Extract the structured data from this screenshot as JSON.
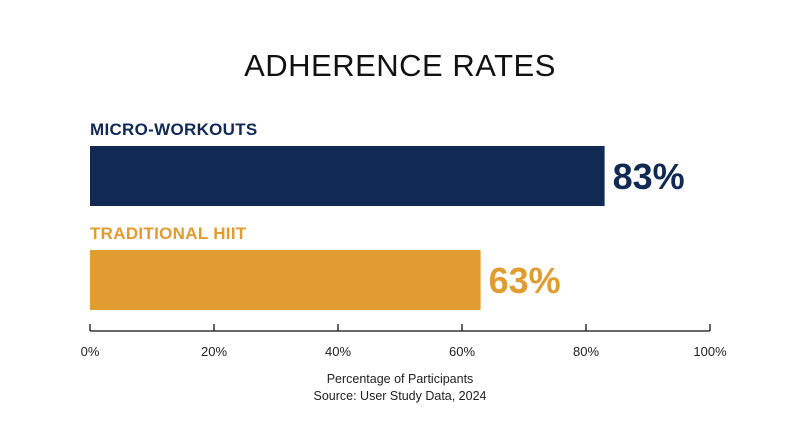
{
  "chart_data": {
    "type": "bar",
    "orientation": "horizontal",
    "title": "ADHERENCE RATES",
    "categories": [
      "MICRO-WORKOUTS",
      "TRADITIONAL HIIT"
    ],
    "values": [
      83,
      63
    ],
    "value_labels": [
      "83%",
      "63%"
    ],
    "colors": [
      "#102a54",
      "#e19c31"
    ],
    "xlim": [
      0,
      100
    ],
    "x_ticks": [
      0,
      20,
      40,
      60,
      80,
      100
    ],
    "x_tick_labels": [
      "0%",
      "20%",
      "40%",
      "60%",
      "80%",
      "100%"
    ],
    "xlabel": "Percentage of Participants",
    "source": "Source: User Study Data, 2024",
    "grid": false,
    "legend": "none"
  }
}
